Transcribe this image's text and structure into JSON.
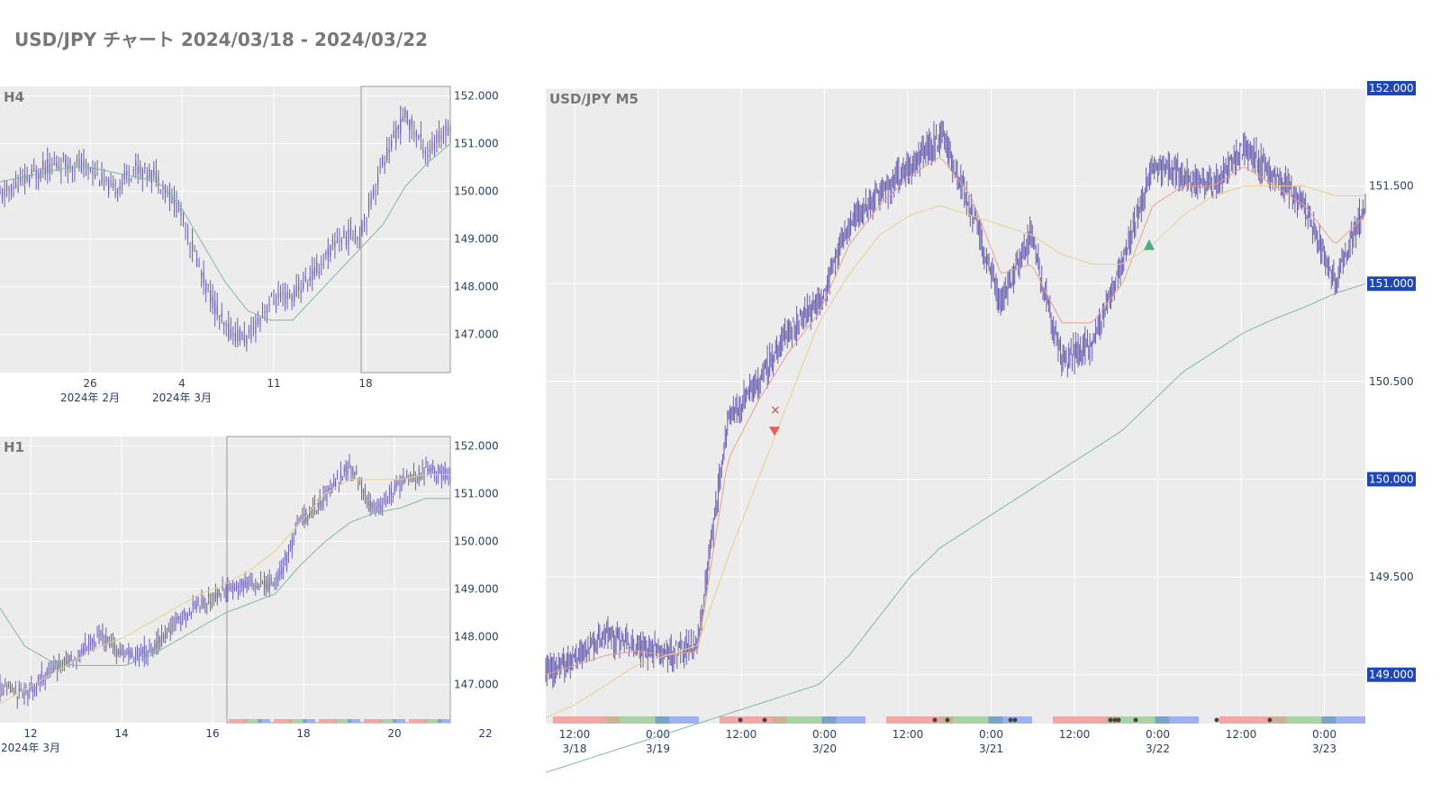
{
  "page": {
    "title": "USD/JPY チャート 2024/03/18 - 2024/03/22"
  },
  "colors": {
    "background": "#ececec",
    "candle": "#6a5fb0",
    "ma_short": "#e8a090",
    "ma_mid": "#e9cf8c",
    "ma_long": "#7fb8a4",
    "price_badge": "#1f46b5",
    "grid": "#ffffff",
    "session_bar": [
      "#f2a7a7",
      "#c9b394",
      "#a9d3a7",
      "#7aa4c7",
      "#9fb1ee"
    ],
    "sell_marker": "#e85c5c",
    "buy_marker": "#4caf7d"
  },
  "chart_data": [
    {
      "id": "h4",
      "type": "candlestick",
      "title": "H4",
      "ylim": [
        146.2,
        152.2
      ],
      "y_ticks": [
        "152.000",
        "151.000",
        "150.000",
        "149.000",
        "148.000",
        "147.000"
      ],
      "x_ticks": [
        {
          "label": "26",
          "sub": "2024年 2月"
        },
        {
          "label": "4",
          "sub": "2024年 3月"
        },
        {
          "label": "11",
          "sub": ""
        },
        {
          "label": "18",
          "sub": ""
        }
      ],
      "highlight_range": [
        "2024-03-18",
        "2024-03-22"
      ],
      "series": [
        {
          "name": "close",
          "x": [
            "2024-02-19",
            "2024-02-21",
            "2024-02-23",
            "2024-02-26",
            "2024-02-28",
            "2024-03-01",
            "2024-03-04",
            "2024-03-05",
            "2024-03-06",
            "2024-03-07",
            "2024-03-08",
            "2024-03-11",
            "2024-03-12",
            "2024-03-13",
            "2024-03-14",
            "2024-03-15",
            "2024-03-18",
            "2024-03-19",
            "2024-03-20",
            "2024-03-21",
            "2024-03-22"
          ],
          "values": [
            149.9,
            150.2,
            150.5,
            150.6,
            150.5,
            150.0,
            150.5,
            150.3,
            149.6,
            148.2,
            147.1,
            146.9,
            147.7,
            147.8,
            148.3,
            149.0,
            149.1,
            150.6,
            151.6,
            150.8,
            151.4
          ]
        },
        {
          "name": "ma",
          "values": [
            150.2,
            150.3,
            150.4,
            150.5,
            150.5,
            150.4,
            150.3,
            150.2,
            149.7,
            148.9,
            148.1,
            147.5,
            147.3,
            147.3,
            147.8,
            148.3,
            148.8,
            149.3,
            150.1,
            150.6,
            151.0
          ]
        }
      ]
    },
    {
      "id": "h1",
      "type": "candlestick",
      "title": "H1",
      "ylim": [
        146.2,
        152.2
      ],
      "y_ticks": [
        "152.000",
        "151.000",
        "150.000",
        "149.000",
        "148.000",
        "147.000"
      ],
      "x_ticks": [
        {
          "label": "12",
          "sub": "2024年 3月"
        },
        {
          "label": "14",
          "sub": ""
        },
        {
          "label": "16",
          "sub": ""
        },
        {
          "label": "18",
          "sub": ""
        },
        {
          "label": "20",
          "sub": ""
        },
        {
          "label": "22",
          "sub": ""
        }
      ],
      "highlight_range": [
        "2024-03-18",
        "2024-03-22"
      ],
      "series": [
        {
          "name": "close",
          "x": [
            "2024-03-11",
            "2024-03-12",
            "2024-03-12 12:00",
            "2024-03-13",
            "2024-03-13 12:00",
            "2024-03-14",
            "2024-03-14 12:00",
            "2024-03-15",
            "2024-03-15 12:00",
            "2024-03-18",
            "2024-03-18 12:00",
            "2024-03-19",
            "2024-03-19 12:00",
            "2024-03-20",
            "2024-03-20 12:00",
            "2024-03-21",
            "2024-03-21 12:00",
            "2024-03-22",
            "2024-03-22 12:00"
          ],
          "values": [
            146.9,
            146.8,
            147.3,
            147.6,
            148.0,
            147.6,
            147.7,
            148.3,
            148.7,
            149.0,
            149.1,
            149.1,
            150.4,
            150.9,
            151.6,
            150.6,
            151.2,
            151.5,
            151.4
          ]
        },
        {
          "name": "ma_mid",
          "values": [
            146.6,
            146.9,
            147.2,
            147.5,
            147.8,
            148.0,
            148.3,
            148.6,
            148.9,
            149.1,
            149.4,
            149.8,
            150.4,
            151.0,
            151.3,
            151.3,
            151.3,
            151.4,
            151.4
          ]
        },
        {
          "name": "ma_long",
          "values": [
            148.6,
            147.8,
            147.5,
            147.4,
            147.4,
            147.4,
            147.6,
            147.9,
            148.2,
            148.5,
            148.7,
            148.9,
            149.5,
            150.0,
            150.4,
            150.6,
            150.7,
            150.9,
            150.9
          ]
        }
      ]
    },
    {
      "id": "m5",
      "type": "candlestick",
      "title": "USD/JPY M5",
      "ylim": [
        148.75,
        152.0
      ],
      "y_ticks": [
        "152.000",
        "151.500",
        "151.000",
        "150.500",
        "150.000",
        "149.500",
        "149.000"
      ],
      "price_badges": [
        "152.000",
        "151.000",
        "150.000",
        "149.000"
      ],
      "x_ticks": [
        {
          "label": "12:00",
          "sub": "3/18"
        },
        {
          "label": "0:00",
          "sub": "3/19"
        },
        {
          "label": "12:00",
          "sub": ""
        },
        {
          "label": "0:00",
          "sub": "3/20"
        },
        {
          "label": "12:00",
          "sub": ""
        },
        {
          "label": "0:00",
          "sub": "3/21"
        },
        {
          "label": "12:00",
          "sub": ""
        },
        {
          "label": "0:00",
          "sub": "3/22"
        },
        {
          "label": "12:00",
          "sub": ""
        },
        {
          "label": "0:00",
          "sub": "3/23"
        }
      ],
      "series": [
        {
          "name": "close",
          "x": [
            "3/18 07:00",
            "3/18 12:00",
            "3/18 18:00",
            "3/19 00:00",
            "3/19 06:00",
            "3/19 12:00",
            "3/19 14:00",
            "3/19 16:00",
            "3/19 20:00",
            "3/20 00:00",
            "3/20 06:00",
            "3/20 12:00",
            "3/20 18:00",
            "3/21 00:00",
            "3/21 03:00",
            "3/21 06:00",
            "3/21 09:00",
            "3/21 12:00",
            "3/21 15:00",
            "3/21 18:00",
            "3/21 21:00",
            "3/22 00:00",
            "3/22 04:00",
            "3/22 08:00",
            "3/22 12:00",
            "3/22 16:00",
            "3/22 20:00",
            "3/22 24:00"
          ],
          "values": [
            149.0,
            149.1,
            149.2,
            149.15,
            149.1,
            149.15,
            150.3,
            150.5,
            150.75,
            150.9,
            151.3,
            151.45,
            151.6,
            151.75,
            151.4,
            150.9,
            151.25,
            150.6,
            150.7,
            151.1,
            151.6,
            151.55,
            151.5,
            151.7,
            151.55,
            151.4,
            151.0,
            151.4
          ]
        },
        {
          "name": "ma_short",
          "values": [
            149.0,
            149.05,
            149.1,
            149.12,
            149.1,
            149.12,
            150.1,
            150.4,
            150.65,
            150.85,
            151.2,
            151.4,
            151.55,
            151.65,
            151.45,
            151.05,
            151.1,
            150.8,
            150.8,
            151.0,
            151.4,
            151.5,
            151.5,
            151.6,
            151.5,
            151.4,
            151.2,
            151.35
          ]
        },
        {
          "name": "ma_mid",
          "values": [
            148.78,
            148.85,
            148.95,
            149.05,
            149.1,
            149.15,
            149.6,
            150.0,
            150.4,
            150.8,
            151.05,
            151.25,
            151.35,
            151.4,
            151.35,
            151.3,
            151.25,
            151.15,
            151.1,
            151.1,
            151.2,
            151.35,
            151.45,
            151.5,
            151.5,
            151.5,
            151.45,
            151.45
          ]
        },
        {
          "name": "ma_long",
          "values": [
            148.5,
            148.55,
            148.6,
            148.65,
            148.7,
            148.75,
            148.8,
            148.85,
            148.9,
            148.95,
            149.1,
            149.3,
            149.5,
            149.65,
            149.75,
            149.85,
            149.95,
            150.05,
            150.15,
            150.25,
            150.4,
            150.55,
            150.65,
            150.75,
            150.82,
            150.88,
            150.95,
            151.0
          ]
        }
      ],
      "markers": [
        {
          "kind": "sell",
          "x": "3/19 14:30",
          "y": 150.25
        },
        {
          "kind": "buy",
          "x": "3/21 23:30",
          "y": 151.2
        }
      ]
    }
  ]
}
